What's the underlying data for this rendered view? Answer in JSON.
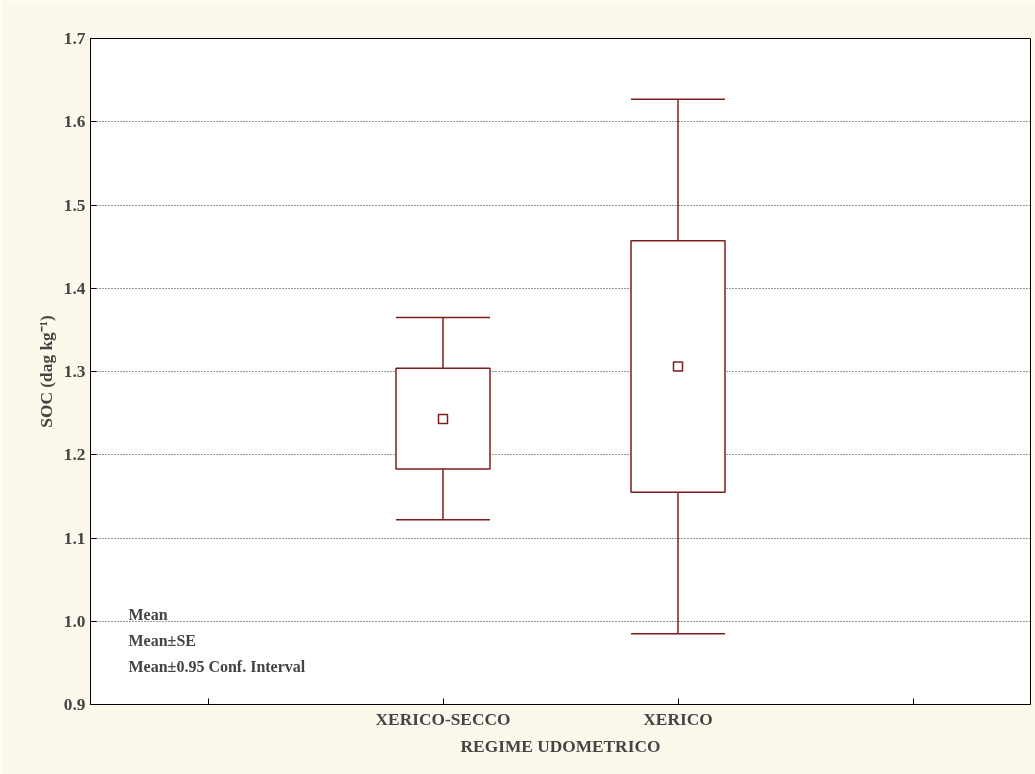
{
  "chart_data": {
    "type": "box",
    "xlabel": "REGIME UDOMETRICO",
    "ylabel": "SOC (dag kg⁻¹)",
    "categories": [
      "XERICO-SECCO",
      "XERICO"
    ],
    "boxes": [
      {
        "low": 1.122,
        "q1": 1.183,
        "median": 1.243,
        "q3": 1.304,
        "high": 1.365
      },
      {
        "low": 0.985,
        "q1": 1.155,
        "median": 1.306,
        "q3": 1.457,
        "high": 1.627
      }
    ],
    "color": "#7f1d1d",
    "ylim": [
      0.9,
      1.7
    ],
    "yticks": [
      {
        "value": 0.9,
        "label": "0.9"
      },
      {
        "value": 1.0,
        "label": "1.0"
      },
      {
        "value": 1.1,
        "label": "1.1"
      },
      {
        "value": 1.2,
        "label": "1.2"
      },
      {
        "value": 1.3,
        "label": "1.3"
      },
      {
        "value": 1.4,
        "label": "1.4"
      },
      {
        "value": 1.5,
        "label": "1.5"
      },
      {
        "value": 1.6,
        "label": "1.6"
      },
      {
        "value": 1.7,
        "label": "1.7"
      }
    ],
    "grid": "y",
    "marker": "square",
    "annotations": [
      "Mean",
      "Mean±SE",
      "Mean±0.95 Conf. Interval"
    ]
  }
}
